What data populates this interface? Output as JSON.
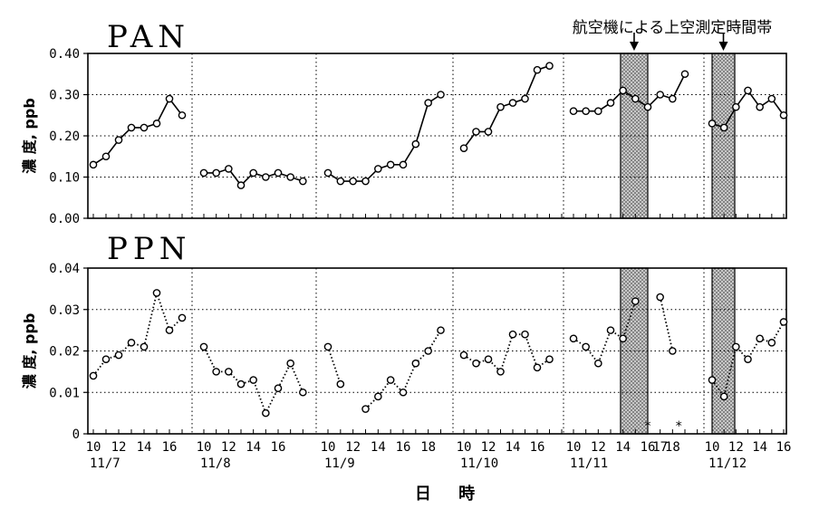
{
  "annotation": "航空機による上空測定時間帯",
  "xlabel": "日 時",
  "colors": {
    "ink": "#000000",
    "shade": "#9a9a9a"
  },
  "chart_data": [
    {
      "type": "line",
      "title": "PAN",
      "ylabel": "濃 度, ppb",
      "ylim": [
        0,
        0.4
      ],
      "yticks": [
        "0.00",
        "0.10",
        "0.20",
        "0.30",
        "0.40"
      ],
      "line_style": "solid",
      "days": [
        {
          "label": "11/7",
          "hours": [
            10,
            11,
            12,
            13,
            14,
            15,
            16,
            17
          ],
          "values": [
            0.13,
            0.15,
            0.19,
            0.22,
            0.22,
            0.23,
            0.29,
            0.25
          ]
        },
        {
          "label": "11/8",
          "hours": [
            10,
            11,
            12,
            13,
            14,
            15,
            16,
            17,
            18
          ],
          "values": [
            0.11,
            0.11,
            0.12,
            0.08,
            0.11,
            0.1,
            0.11,
            0.1,
            0.09
          ]
        },
        {
          "label": "11/9",
          "hours": [
            10,
            11,
            12,
            13,
            14,
            15,
            16,
            17,
            18,
            19
          ],
          "values": [
            0.11,
            0.09,
            0.09,
            0.09,
            0.12,
            0.13,
            0.13,
            0.18,
            0.28,
            0.3
          ]
        },
        {
          "label": "11/10",
          "hours": [
            10,
            11,
            12,
            13,
            14,
            15,
            16,
            17
          ],
          "values": [
            0.17,
            0.21,
            0.21,
            0.27,
            0.28,
            0.29,
            0.36,
            0.37
          ]
        },
        {
          "label": "11/11",
          "hours": [
            10,
            11,
            12,
            13,
            14,
            15,
            16,
            17,
            18,
            19
          ],
          "values": [
            0.26,
            0.26,
            0.26,
            0.28,
            0.31,
            0.29,
            0.27,
            0.3,
            0.29,
            0.35
          ]
        },
        {
          "label": "11/12",
          "hours": [
            10,
            11,
            12,
            13,
            14,
            15,
            16
          ],
          "values": [
            0.23,
            0.22,
            0.27,
            0.31,
            0.27,
            0.29,
            0.25
          ]
        }
      ],
      "missing": []
    },
    {
      "type": "line",
      "title": "PPN",
      "ylabel": "濃 度, ppb",
      "ylim": [
        0,
        0.04
      ],
      "yticks": [
        "0",
        "0.01",
        "0.02",
        "0.03",
        "0.04"
      ],
      "line_style": "dotted",
      "days": [
        {
          "label": "11/7",
          "hours": [
            10,
            11,
            12,
            13,
            14,
            15,
            16,
            17
          ],
          "values": [
            0.014,
            0.018,
            0.019,
            0.022,
            0.021,
            0.034,
            0.025,
            0.028
          ]
        },
        {
          "label": "11/8",
          "hours": [
            10,
            11,
            12,
            13,
            14,
            15,
            16,
            17,
            18
          ],
          "values": [
            0.021,
            0.015,
            0.015,
            0.012,
            0.013,
            0.005,
            0.011,
            0.017,
            0.01
          ]
        },
        {
          "label": "11/9",
          "hours": [
            10,
            11,
            12,
            13,
            14,
            15,
            16,
            17,
            18,
            19
          ],
          "values": [
            0.021,
            0.012,
            null,
            0.006,
            0.009,
            0.013,
            0.01,
            0.017,
            0.02,
            0.025
          ]
        },
        {
          "label": "11/10",
          "hours": [
            10,
            11,
            12,
            13,
            14,
            15,
            16,
            17
          ],
          "values": [
            0.019,
            0.017,
            0.018,
            0.015,
            0.024,
            0.024,
            0.016,
            0.018
          ]
        },
        {
          "label": "11/11",
          "hours": [
            10,
            11,
            12,
            13,
            14,
            15,
            16,
            17,
            18
          ],
          "values": [
            0.023,
            0.021,
            0.017,
            0.025,
            0.023,
            0.032,
            null,
            0.033,
            0.02
          ]
        },
        {
          "label": "11/12",
          "hours": [
            10,
            11,
            12,
            13,
            14,
            15,
            16
          ],
          "values": [
            0.013,
            0.009,
            0.021,
            0.018,
            0.023,
            0.022,
            0.027
          ]
        }
      ],
      "missing": [
        {
          "day": "11/11",
          "hour": 16,
          "marker": "*"
        },
        {
          "day": "11/11",
          "hour": 18.5,
          "marker": "*"
        }
      ]
    }
  ],
  "x_axis": {
    "groups": [
      {
        "date": "11/7",
        "ticks": [
          "10",
          "12",
          "14",
          "16"
        ]
      },
      {
        "date": "11/8",
        "ticks": [
          "10",
          "12",
          "14",
          "16"
        ]
      },
      {
        "date": "11/9",
        "ticks": [
          "10",
          "12",
          "14",
          "16",
          "18"
        ]
      },
      {
        "date": "11/10",
        "ticks": [
          "10",
          "12",
          "14",
          "16"
        ]
      },
      {
        "date": "11/11",
        "ticks": [
          "10",
          "12",
          "14",
          "16",
          "17",
          "18"
        ]
      },
      {
        "date": "11/12",
        "ticks": [
          "10",
          "12",
          "14",
          "16"
        ]
      }
    ]
  },
  "flight_periods": [
    {
      "day": "11/11",
      "from_hour": 13.8,
      "to_hour": 16.0
    },
    {
      "day": "11/12",
      "from_hour": 10.0,
      "to_hour": 11.9
    }
  ]
}
